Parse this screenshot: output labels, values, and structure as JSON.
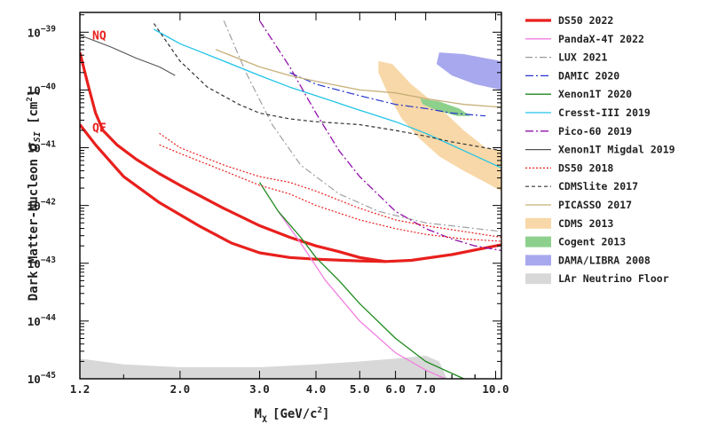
{
  "chart_data": {
    "type": "line",
    "xlabel": "M_χ [GeV/c²]",
    "xlabel_main": "M",
    "xlabel_sub": "χ",
    "xlabel_unit": "[GeV/c",
    "xlabel_unit_sup": "2",
    "xlabel_unit_end": "]",
    "ylabel": "Dark Matter-Nucleon σ_SI [cm²]",
    "ylabel_main": "Dark Matter-Nucleon ",
    "ylabel_sigma": "σ",
    "ylabel_sub": "SI",
    "ylabel_unit": " [cm",
    "ylabel_unit_sup": "2",
    "ylabel_unit_end": "]",
    "x_scale": "log",
    "y_scale": "log",
    "xlim": [
      1.2,
      10.3
    ],
    "ylim": [
      1e-45,
      2.2e-39
    ],
    "x_ticks": [
      {
        "value": 1.2,
        "label": "1.2"
      },
      {
        "value": 2.0,
        "label": "2.0"
      },
      {
        "value": 3.0,
        "label": "3.0"
      },
      {
        "value": 4.0,
        "label": "4.0"
      },
      {
        "value": 5.0,
        "label": "5.0"
      },
      {
        "value": 6.0,
        "label": "6.0"
      },
      {
        "value": 7.0,
        "label": "7.0"
      },
      {
        "value": 10.0,
        "label": "10.0"
      }
    ],
    "y_ticks": [
      {
        "exp": -39,
        "base": "10",
        "sup": "−39"
      },
      {
        "exp": -40,
        "base": "10",
        "sup": "−40"
      },
      {
        "exp": -41,
        "base": "10",
        "sup": "−41"
      },
      {
        "exp": -42,
        "base": "10",
        "sup": "−42"
      },
      {
        "exp": -43,
        "base": "10",
        "sup": "−43"
      },
      {
        "exp": -44,
        "base": "10",
        "sup": "−44"
      },
      {
        "exp": -45,
        "base": "10",
        "sup": "−45"
      }
    ],
    "annotations": [
      {
        "text": "NQ",
        "x": 1.25,
        "logy": -39.05
      },
      {
        "text": "QF",
        "x": 1.25,
        "logy": -40.65
      }
    ],
    "legend_placement": "right, outside plot",
    "series": [
      {
        "name": "DS50 2022",
        "kind": "line",
        "color": "#e8201d",
        "dash": "",
        "width": 3.2,
        "legend_width": 3.2,
        "points": [
          [
            1.2,
            -40.6
          ],
          [
            1.3,
            -40.95
          ],
          [
            1.5,
            -41.5
          ],
          [
            1.8,
            -41.95
          ],
          [
            2.2,
            -42.35
          ],
          [
            2.6,
            -42.65
          ],
          [
            3.0,
            -42.82
          ],
          [
            3.5,
            -42.9
          ],
          [
            4.0,
            -42.93
          ],
          [
            5.0,
            -42.96
          ],
          [
            5.7,
            -42.97
          ],
          [
            6.5,
            -42.95
          ],
          [
            8.0,
            -42.85
          ],
          [
            10.3,
            -42.68
          ]
        ]
      },
      {
        "name": "",
        "kind": "line",
        "color": "#e8201d",
        "dash": "",
        "width": 3.2,
        "legend": false,
        "points": [
          [
            1.2,
            -39.35
          ],
          [
            1.25,
            -39.9
          ],
          [
            1.3,
            -40.4
          ],
          [
            1.35,
            -40.7
          ],
          [
            1.45,
            -40.95
          ],
          [
            1.6,
            -41.2
          ],
          [
            1.8,
            -41.45
          ],
          [
            2.0,
            -41.65
          ],
          [
            2.5,
            -42.05
          ],
          [
            3.0,
            -42.35
          ],
          [
            3.5,
            -42.55
          ],
          [
            4.0,
            -42.7
          ],
          [
            4.5,
            -42.8
          ],
          [
            5.0,
            -42.9
          ],
          [
            5.7,
            -42.97
          ]
        ]
      },
      {
        "name": "PandaX-4T 2022",
        "kind": "line",
        "color": "#f07ee0",
        "dash": "",
        "width": 1.3,
        "points": [
          [
            3.3,
            -42.1
          ],
          [
            3.7,
            -42.65
          ],
          [
            4.2,
            -43.3
          ],
          [
            5.0,
            -44.0
          ],
          [
            6.0,
            -44.55
          ],
          [
            7.0,
            -44.85
          ],
          [
            8.0,
            -45.05
          ]
        ]
      },
      {
        "name": "LUX 2021",
        "kind": "line",
        "color": "#9a9a9a",
        "dash": "8 3 2 3",
        "width": 1.1,
        "points": [
          [
            2.5,
            -38.8
          ],
          [
            2.8,
            -39.7
          ],
          [
            3.2,
            -40.6
          ],
          [
            3.7,
            -41.3
          ],
          [
            4.5,
            -41.8
          ],
          [
            5.5,
            -42.1
          ],
          [
            7.0,
            -42.3
          ],
          [
            10.3,
            -42.45
          ]
        ]
      },
      {
        "name": "DAMIC 2020",
        "kind": "line",
        "color": "#2233cc",
        "dash": "9 3 2 3",
        "width": 1.2,
        "points": [
          [
            3.5,
            -39.7
          ],
          [
            4.0,
            -39.9
          ],
          [
            5.0,
            -40.1
          ],
          [
            6.0,
            -40.25
          ],
          [
            7.0,
            -40.32
          ],
          [
            8.0,
            -40.4
          ],
          [
            9.5,
            -40.45
          ]
        ]
      },
      {
        "name": "Xenon1T 2020",
        "kind": "line",
        "color": "#1e8a1e",
        "dash": "",
        "width": 1.3,
        "points": [
          [
            3.0,
            -41.6
          ],
          [
            3.3,
            -42.1
          ],
          [
            3.7,
            -42.55
          ],
          [
            4.0,
            -42.9
          ],
          [
            4.5,
            -43.3
          ],
          [
            5.0,
            -43.7
          ],
          [
            6.0,
            -44.3
          ],
          [
            7.0,
            -44.7
          ],
          [
            8.5,
            -45.0
          ]
        ]
      },
      {
        "name": "Cresst-III 2019",
        "kind": "line",
        "color": "#22c4e8",
        "dash": "",
        "width": 1.3,
        "points": [
          [
            1.75,
            -38.95
          ],
          [
            2.0,
            -39.2
          ],
          [
            2.5,
            -39.5
          ],
          [
            3.0,
            -39.75
          ],
          [
            3.5,
            -39.95
          ],
          [
            4.0,
            -40.1
          ],
          [
            5.0,
            -40.35
          ],
          [
            6.0,
            -40.55
          ],
          [
            7.0,
            -40.75
          ],
          [
            8.5,
            -41.05
          ],
          [
            10.3,
            -41.35
          ]
        ]
      },
      {
        "name": "Pico-60 2019",
        "kind": "line",
        "color": "#9010a8",
        "dash": "9 3 2 3",
        "width": 1.3,
        "points": [
          [
            3.0,
            -38.8
          ],
          [
            3.5,
            -39.6
          ],
          [
            4.0,
            -40.4
          ],
          [
            4.5,
            -41.05
          ],
          [
            5.0,
            -41.5
          ],
          [
            6.0,
            -42.1
          ],
          [
            7.0,
            -42.4
          ],
          [
            8.0,
            -42.58
          ],
          [
            9.0,
            -42.7
          ],
          [
            10.3,
            -42.78
          ]
        ]
      },
      {
        "name": "Xenon1T Migdal 2019",
        "kind": "line",
        "color": "#555555",
        "dash": "",
        "width": 1.1,
        "points": [
          [
            1.2,
            -39.05
          ],
          [
            1.4,
            -39.25
          ],
          [
            1.6,
            -39.45
          ],
          [
            1.8,
            -39.6
          ],
          [
            1.95,
            -39.75
          ]
        ]
      },
      {
        "name": "DS50 2018",
        "kind": "line",
        "color": "#e8201d",
        "dash": "2 2",
        "width": 1.2,
        "points": [
          [
            1.8,
            -40.75
          ],
          [
            2.0,
            -41.0
          ],
          [
            2.5,
            -41.3
          ],
          [
            3.0,
            -41.5
          ],
          [
            3.5,
            -41.6
          ],
          [
            4.0,
            -41.75
          ],
          [
            5.0,
            -42.05
          ],
          [
            6.0,
            -42.25
          ],
          [
            7.0,
            -42.35
          ],
          [
            8.5,
            -42.45
          ],
          [
            10.3,
            -42.55
          ]
        ]
      },
      {
        "name": "",
        "kind": "line",
        "color": "#e8201d",
        "dash": "2 2",
        "width": 1.2,
        "legend": false,
        "points": [
          [
            1.8,
            -40.95
          ],
          [
            2.0,
            -41.1
          ],
          [
            2.5,
            -41.4
          ],
          [
            3.0,
            -41.65
          ],
          [
            3.5,
            -41.8
          ],
          [
            4.0,
            -42.0
          ],
          [
            5.0,
            -42.25
          ],
          [
            6.0,
            -42.4
          ],
          [
            7.0,
            -42.5
          ],
          [
            8.5,
            -42.58
          ],
          [
            10.3,
            -42.62
          ]
        ]
      },
      {
        "name": "CDMSlite 2017",
        "kind": "line",
        "color": "#333333",
        "dash": "4 3",
        "width": 1.2,
        "points": [
          [
            1.75,
            -38.85
          ],
          [
            2.0,
            -39.5
          ],
          [
            2.3,
            -39.95
          ],
          [
            2.7,
            -40.25
          ],
          [
            3.0,
            -40.4
          ],
          [
            3.5,
            -40.5
          ],
          [
            4.0,
            -40.55
          ],
          [
            5.0,
            -40.6
          ],
          [
            6.0,
            -40.7
          ],
          [
            7.0,
            -40.8
          ],
          [
            8.0,
            -40.9
          ],
          [
            10.3,
            -41.05
          ]
        ]
      },
      {
        "name": "PICASSO 2017",
        "kind": "line",
        "color": "#c7b078",
        "dash": "",
        "width": 1.3,
        "points": [
          [
            2.4,
            -39.3
          ],
          [
            3.0,
            -39.6
          ],
          [
            3.5,
            -39.75
          ],
          [
            4.0,
            -39.85
          ],
          [
            5.0,
            -40.0
          ],
          [
            6.0,
            -40.05
          ],
          [
            7.0,
            -40.15
          ],
          [
            8.5,
            -40.25
          ],
          [
            10.3,
            -40.3
          ]
        ]
      },
      {
        "name": "CDMS 2013",
        "kind": "region",
        "color": "#f8d8a8",
        "points": [
          [
            5.5,
            -39.5
          ],
          [
            5.9,
            -39.55
          ],
          [
            6.5,
            -39.9
          ],
          [
            7.5,
            -40.3
          ],
          [
            8.5,
            -40.7
          ],
          [
            9.5,
            -41.0
          ],
          [
            10.3,
            -41.05
          ],
          [
            10.3,
            -41.75
          ],
          [
            9.5,
            -41.6
          ],
          [
            8.5,
            -41.4
          ],
          [
            7.5,
            -41.15
          ],
          [
            6.8,
            -40.85
          ],
          [
            6.2,
            -40.5
          ],
          [
            5.8,
            -40.1
          ],
          [
            5.5,
            -39.7
          ]
        ]
      },
      {
        "name": "Cogent 2013",
        "kind": "region",
        "color": "#8cd08c",
        "points": [
          [
            6.8,
            -40.15
          ],
          [
            7.5,
            -40.2
          ],
          [
            8.3,
            -40.32
          ],
          [
            8.8,
            -40.45
          ],
          [
            8.2,
            -40.45
          ],
          [
            7.4,
            -40.35
          ],
          [
            6.9,
            -40.25
          ]
        ]
      },
      {
        "name": "DAMA/LIBRA 2008",
        "kind": "region",
        "color": "#a8a8ee",
        "points": [
          [
            7.5,
            -39.35
          ],
          [
            8.5,
            -39.38
          ],
          [
            9.5,
            -39.45
          ],
          [
            10.3,
            -39.5
          ],
          [
            10.3,
            -40.0
          ],
          [
            9.0,
            -39.9
          ],
          [
            8.0,
            -39.75
          ],
          [
            7.4,
            -39.55
          ]
        ]
      },
      {
        "name": "LAr Neutrino Floor",
        "kind": "region",
        "color": "#d8d8d8",
        "points": [
          [
            1.2,
            -44.65
          ],
          [
            1.5,
            -44.75
          ],
          [
            2.0,
            -44.8
          ],
          [
            3.0,
            -44.8
          ],
          [
            4.0,
            -44.75
          ],
          [
            5.0,
            -44.7
          ],
          [
            6.0,
            -44.65
          ],
          [
            7.0,
            -44.6
          ],
          [
            7.5,
            -44.7
          ],
          [
            7.8,
            -45.0
          ],
          [
            1.2,
            -45.0
          ]
        ]
      }
    ]
  }
}
